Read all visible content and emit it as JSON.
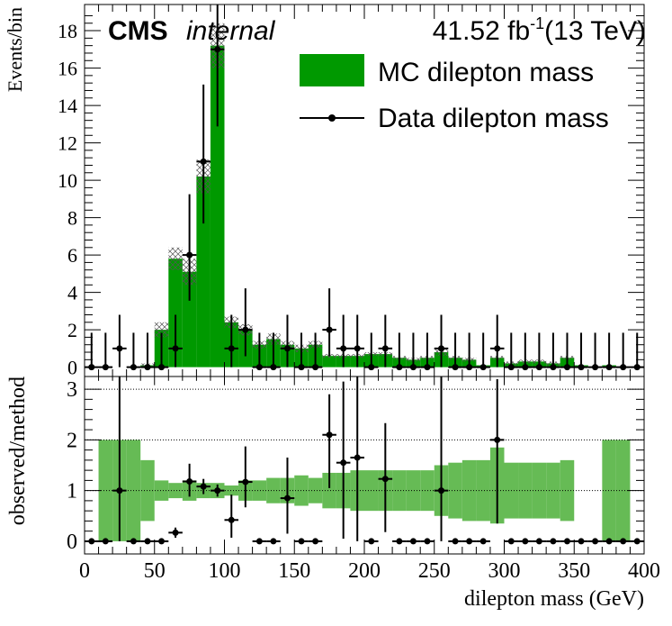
{
  "chart_data": {
    "type": "bar",
    "header": {
      "experiment": "CMS",
      "status": "internal",
      "luminosity": "41.52 fb",
      "lumi_exponent": "-1",
      "energy": "(13 TeV)"
    },
    "xlabel": "dilepton mass (GeV)",
    "xlim": [
      0,
      400
    ],
    "x_ticks": [
      "0",
      "50",
      "100",
      "150",
      "200",
      "250",
      "300",
      "350",
      "400"
    ],
    "bin_width": 10,
    "bin_centers": [
      5,
      15,
      25,
      35,
      45,
      55,
      65,
      75,
      85,
      95,
      105,
      115,
      125,
      135,
      145,
      155,
      165,
      175,
      185,
      195,
      205,
      215,
      225,
      235,
      245,
      255,
      265,
      275,
      285,
      295,
      305,
      315,
      325,
      335,
      345,
      355,
      365,
      375,
      385,
      395
    ],
    "main_panel": {
      "ylabel": "Events/bin",
      "ylim": [
        -0.5,
        19.4
      ],
      "y_ticks": [
        "0",
        "2",
        "4",
        "6",
        "8",
        "10",
        "12",
        "14",
        "16",
        "18"
      ],
      "legend": [
        {
          "label": "MC dilepton mass",
          "color": "#009900"
        },
        {
          "label": "Data dilepton mass",
          "color": "#000000"
        }
      ],
      "series": [
        {
          "name": "MC dilepton mass",
          "color": "#009900",
          "values": [
            0,
            0,
            0,
            0,
            0.1,
            2.0,
            5.8,
            5.1,
            10.2,
            17.2,
            2.4,
            2.0,
            1.2,
            1.5,
            1.2,
            1.0,
            1.2,
            0.6,
            0.6,
            0.6,
            0.7,
            0.7,
            0.5,
            0.4,
            0.5,
            0.8,
            0.5,
            0.4,
            0.1,
            0.5,
            0.2,
            0.3,
            0.3,
            0.2,
            0.5,
            0.1,
            0.0,
            0.1,
            0.0,
            0.0
          ],
          "uncertainty": [
            0,
            0,
            0,
            0,
            0.1,
            0.4,
            0.6,
            0.7,
            0.9,
            1.2,
            0.3,
            0.3,
            0.2,
            0.3,
            0.2,
            0.2,
            0.2,
            0.1,
            0.1,
            0.1,
            0.1,
            0.1,
            0.1,
            0.1,
            0.1,
            0.2,
            0.1,
            0.1,
            0.0,
            0.1,
            0.1,
            0.1,
            0.1,
            0.1,
            0.1,
            0.0,
            0.0,
            0.0,
            0.0,
            0.0
          ]
        },
        {
          "name": "Data dilepton mass",
          "color": "#000000",
          "values": [
            0,
            0,
            1,
            0,
            0,
            0,
            1,
            6,
            11,
            17,
            1,
            2,
            0,
            0,
            1,
            0,
            0,
            2,
            1,
            1,
            0,
            1,
            0,
            0,
            0,
            1,
            0,
            0,
            0,
            1,
            0,
            0,
            0,
            0,
            0,
            0,
            0,
            0,
            0,
            0
          ]
        }
      ]
    },
    "ratio_panel": {
      "ylabel": "observed/method",
      "ylim": [
        -0.25,
        3.25
      ],
      "y_ticks": [
        "0",
        "1",
        "2",
        "3"
      ],
      "reference_lines": [
        1,
        2,
        3
      ],
      "band": {
        "color": "#66bb55",
        "low": [
          1,
          0,
          0,
          0,
          0.4,
          0.8,
          0.85,
          0.8,
          0.85,
          0.85,
          0.9,
          0.8,
          0.8,
          0.75,
          0.75,
          0.7,
          0.75,
          0.65,
          0.65,
          0.6,
          0.6,
          0.6,
          0.6,
          0.6,
          0.6,
          0.5,
          0.45,
          0.4,
          0.4,
          0.35,
          0.45,
          0.45,
          0.45,
          0.45,
          0.4,
          1,
          1,
          0,
          0,
          1
        ],
        "high": [
          1,
          2,
          2,
          2,
          1.6,
          1.2,
          1.15,
          1.2,
          1.15,
          1.15,
          1.1,
          1.2,
          1.2,
          1.25,
          1.25,
          1.3,
          1.25,
          1.35,
          1.35,
          1.4,
          1.4,
          1.4,
          1.4,
          1.4,
          1.4,
          1.5,
          1.55,
          1.6,
          1.6,
          1.85,
          1.55,
          1.55,
          1.55,
          1.55,
          1.6,
          1,
          1,
          2,
          2,
          1
        ]
      },
      "points": [
        0,
        0,
        1.0,
        0,
        0,
        0,
        0.17,
        1.18,
        1.08,
        1.0,
        0.42,
        1.17,
        0,
        0,
        0.85,
        0,
        0,
        2.1,
        1.55,
        1.65,
        0,
        1.23,
        0,
        0,
        0,
        1.0,
        0,
        0,
        0,
        2.0,
        0,
        0,
        0,
        0,
        0,
        0,
        0,
        0,
        0,
        0
      ],
      "error_up": [
        0,
        0,
        2.3,
        0,
        0,
        0,
        0.1,
        0.35,
        0.15,
        0.12,
        0.5,
        0.7,
        0,
        0,
        0.8,
        0,
        0,
        0.8,
        1.6,
        1.6,
        0,
        1.1,
        0,
        0,
        0,
        2.3,
        0,
        0,
        0,
        1.2,
        0,
        0,
        0,
        0,
        0,
        0,
        0,
        0,
        0,
        0
      ],
      "error_down": [
        0,
        0,
        1.0,
        0,
        0,
        0,
        0.1,
        0.3,
        0.15,
        0.12,
        0.35,
        0.5,
        0,
        0,
        0.7,
        0,
        0,
        1.05,
        1.5,
        1.65,
        0,
        1.05,
        0,
        0,
        0,
        1.0,
        0,
        0,
        0,
        1.65,
        0,
        0,
        0,
        0,
        0,
        0,
        0,
        0,
        0,
        0
      ]
    }
  }
}
